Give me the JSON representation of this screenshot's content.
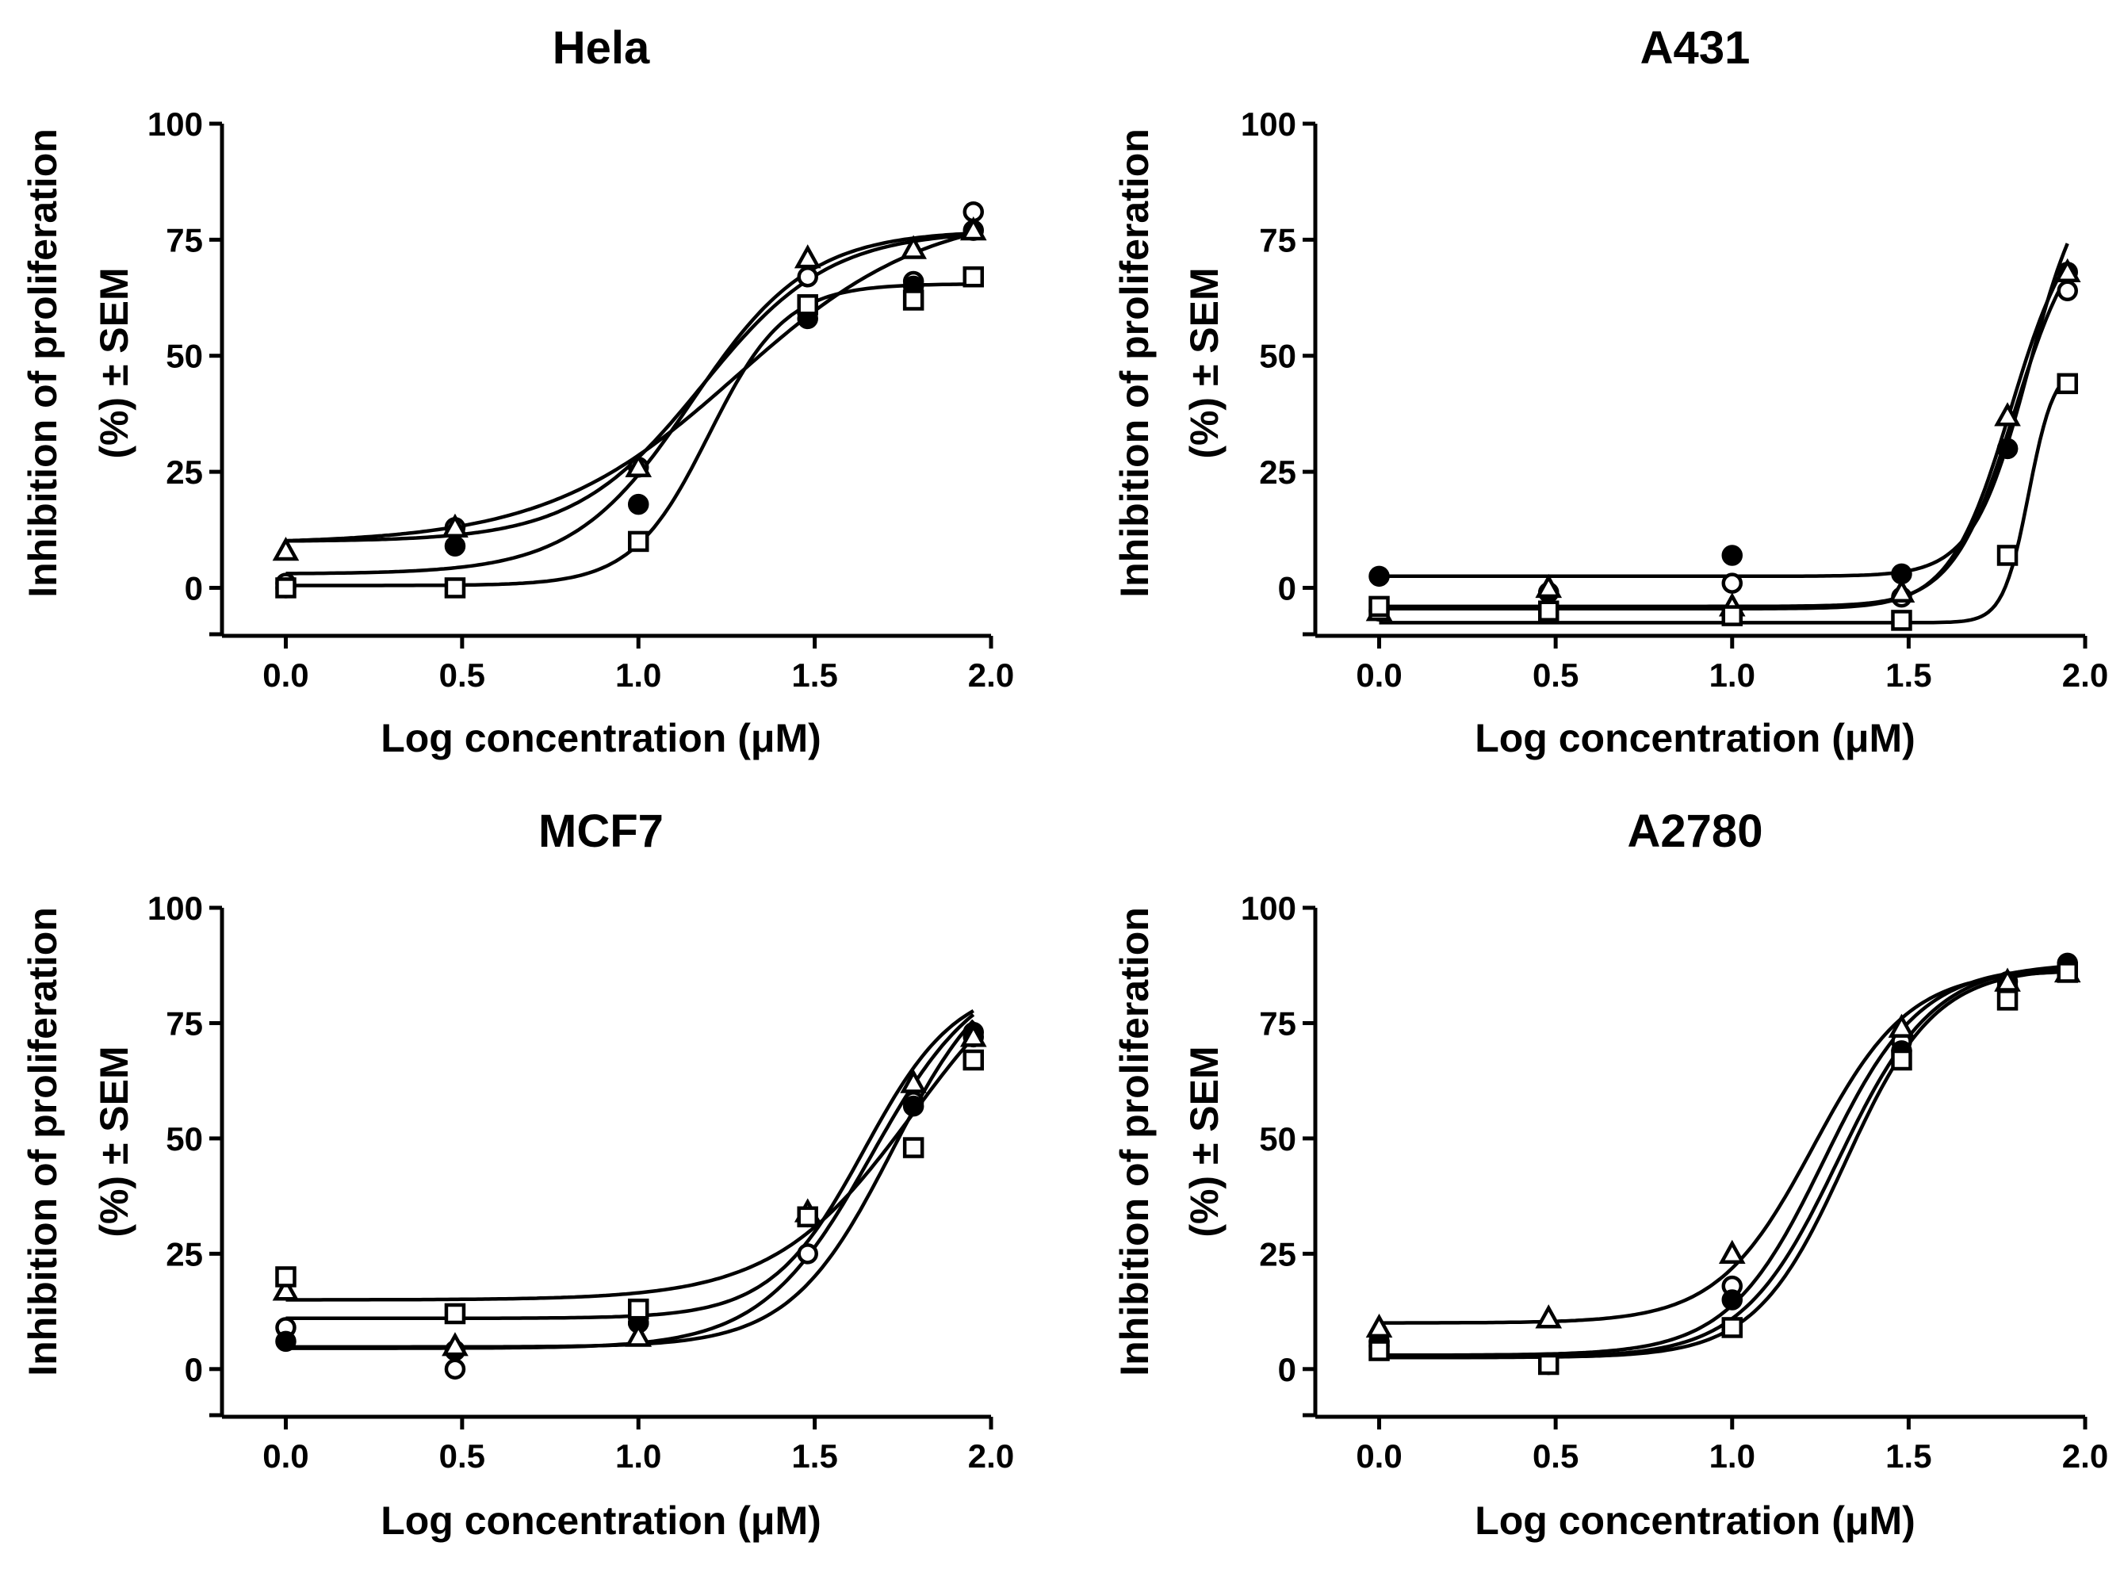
{
  "chart_data": [
    {
      "type": "line",
      "title": "Hela",
      "xlabel": "Log concentration (μM)",
      "ylabel_line1": "Inhibition of proliferation",
      "ylabel_line2": "(%) ± SEM",
      "xlim": [
        -0.1,
        2.0
      ],
      "ylim": [
        -10,
        100
      ],
      "xticks": [
        "0.0",
        "0.5",
        "1.0",
        "1.5",
        "2.0"
      ],
      "yticks": [
        "0",
        "25",
        "50",
        "75",
        "100"
      ],
      "x": [
        0.0,
        0.48,
        1.0,
        1.48,
        1.78,
        1.95
      ],
      "series": [
        {
          "name": "open-circle",
          "marker": "circle",
          "filled": false,
          "values": [
            1,
            13,
            26,
            67,
            66,
            81
          ],
          "fit": {
            "bottom": 3,
            "top": 77,
            "ec50": 1.15,
            "hill": 2.6
          }
        },
        {
          "name": "filled-circle",
          "marker": "circle",
          "filled": true,
          "values": [
            0,
            9,
            18,
            58,
            65,
            77
          ],
          "fit": {
            "bottom": 9.5,
            "top": 82,
            "ec50": 1.28,
            "hill": 1.6
          }
        },
        {
          "name": "open-triangle",
          "marker": "triangle",
          "filled": false,
          "values": [
            8,
            13,
            26,
            71,
            73,
            77
          ],
          "fit": {
            "bottom": 10,
            "top": 77,
            "ec50": 1.18,
            "hill": 2.4
          }
        },
        {
          "name": "open-square",
          "marker": "square",
          "filled": false,
          "values": [
            0,
            0,
            10,
            61,
            62,
            67
          ],
          "fit": {
            "bottom": 0.5,
            "top": 65.5,
            "ec50": 1.2,
            "hill": 4.0
          }
        }
      ]
    },
    {
      "type": "line",
      "title": "A431",
      "xlabel": "Log concentration (μM)",
      "ylabel_line1": "Inhibition of proliferation",
      "ylabel_line2": "(%) ± SEM",
      "xlim": [
        -0.1,
        2.0
      ],
      "ylim": [
        -10,
        100
      ],
      "xticks": [
        "0.0",
        "0.5",
        "1.0",
        "1.5",
        "2.0"
      ],
      "yticks": [
        "0",
        "25",
        "50",
        "75",
        "100"
      ],
      "x": [
        0.0,
        0.48,
        1.0,
        1.48,
        1.78,
        1.95
      ],
      "series": [
        {
          "name": "open-circle",
          "marker": "circle",
          "filled": false,
          "values": [
            -5,
            -1,
            1,
            -2,
            30,
            64
          ],
          "fit": {
            "bottom": -4,
            "top": 80,
            "ec50": 1.8,
            "hill": 5.0
          }
        },
        {
          "name": "filled-circle",
          "marker": "circle",
          "filled": true,
          "values": [
            2.5,
            -1,
            7,
            3,
            30,
            68
          ],
          "fit": {
            "bottom": 2.5,
            "top": 92,
            "ec50": 1.84,
            "hill": 5.5
          }
        },
        {
          "name": "open-triangle",
          "marker": "triangle",
          "filled": false,
          "values": [
            -5,
            0,
            -4,
            -1,
            37,
            68
          ],
          "fit": {
            "bottom": -4.5,
            "top": 82,
            "ec50": 1.79,
            "hill": 5.0
          }
        },
        {
          "name": "open-square",
          "marker": "square",
          "filled": false,
          "values": [
            -4,
            -5,
            -6,
            -7,
            7,
            44
          ],
          "fit": {
            "bottom": -7.5,
            "top": 48,
            "ec50": 1.84,
            "hill": 12.0
          }
        }
      ]
    },
    {
      "type": "line",
      "title": "MCF7",
      "xlabel": "Log concentration (μM)",
      "ylabel_line1": "Inhibition of proliferation",
      "ylabel_line2": "(%) ± SEM",
      "xlim": [
        -0.1,
        2.0
      ],
      "ylim": [
        -10,
        100
      ],
      "xticks": [
        "0.0",
        "0.5",
        "1.0",
        "1.5",
        "2.0"
      ],
      "yticks": [
        "0",
        "25",
        "50",
        "75",
        "100"
      ],
      "x": [
        0.0,
        0.48,
        1.0,
        1.48,
        1.78,
        1.95
      ],
      "series": [
        {
          "name": "open-circle",
          "marker": "circle",
          "filled": false,
          "values": [
            9,
            0,
            10,
            25,
            58,
            72
          ],
          "fit": {
            "bottom": 4.8,
            "top": 90,
            "ec50": 1.72,
            "hill": 3.0
          }
        },
        {
          "name": "filled-circle",
          "marker": "circle",
          "filled": true,
          "values": [
            6,
            4,
            10,
            33,
            57,
            73
          ],
          "fit": {
            "bottom": 4.5,
            "top": 88,
            "ec50": 1.66,
            "hill": 2.8
          }
        },
        {
          "name": "open-triangle",
          "marker": "triangle",
          "filled": false,
          "values": [
            17,
            5,
            7,
            34,
            62,
            72
          ],
          "fit": {
            "bottom": 11,
            "top": 84,
            "ec50": 1.64,
            "hill": 3.3
          }
        },
        {
          "name": "open-square",
          "marker": "square",
          "filled": false,
          "values": [
            20,
            12,
            13,
            33,
            48,
            67
          ],
          "fit": {
            "bottom": 15,
            "top": 96,
            "ec50": 1.78,
            "hill": 2.2
          }
        }
      ]
    },
    {
      "type": "line",
      "title": "A2780",
      "xlabel": "Log concentration (μM)",
      "ylabel_line1": "Inhibition of proliferation",
      "ylabel_line2": "(%) ± SEM",
      "xlim": [
        -0.1,
        2.0
      ],
      "ylim": [
        -10,
        100
      ],
      "xticks": [
        "0.0",
        "0.5",
        "1.0",
        "1.5",
        "2.0"
      ],
      "yticks": [
        "0",
        "25",
        "50",
        "75",
        "100"
      ],
      "x": [
        0.0,
        0.48,
        1.0,
        1.48,
        1.78,
        1.95
      ],
      "series": [
        {
          "name": "open-circle",
          "marker": "circle",
          "filled": false,
          "values": [
            5,
            1,
            18,
            71,
            84,
            87
          ],
          "fit": {
            "bottom": 3,
            "top": 87.5,
            "ec50": 1.26,
            "hill": 3.2
          }
        },
        {
          "name": "filled-circle",
          "marker": "circle",
          "filled": true,
          "values": [
            6,
            1,
            15,
            69,
            83,
            88
          ],
          "fit": {
            "bottom": 2.5,
            "top": 88,
            "ec50": 1.3,
            "hill": 3.2
          }
        },
        {
          "name": "open-triangle",
          "marker": "triangle",
          "filled": false,
          "values": [
            9,
            11,
            25,
            74,
            84,
            86
          ],
          "fit": {
            "bottom": 10,
            "top": 86.5,
            "ec50": 1.23,
            "hill": 3.2
          }
        },
        {
          "name": "open-square",
          "marker": "square",
          "filled": false,
          "values": [
            4,
            1,
            9,
            67,
            80,
            86
          ],
          "fit": {
            "bottom": 2.5,
            "top": 87,
            "ec50": 1.32,
            "hill": 3.4
          }
        }
      ]
    }
  ]
}
